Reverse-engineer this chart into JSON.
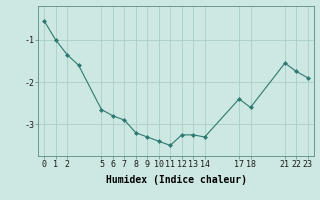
{
  "x": [
    0,
    1,
    2,
    3,
    5,
    6,
    7,
    8,
    9,
    10,
    11,
    12,
    13,
    14,
    17,
    18,
    21,
    22,
    23
  ],
  "y": [
    -0.55,
    -1.0,
    -1.35,
    -1.6,
    -2.65,
    -2.8,
    -2.9,
    -3.2,
    -3.3,
    -3.4,
    -3.5,
    -3.25,
    -3.25,
    -3.3,
    -2.4,
    -2.6,
    -1.55,
    -1.75,
    -1.9
  ],
  "line_color": "#2d7a6e",
  "marker_color": "#2d7a6e",
  "bg_color": "#cde8e2",
  "plot_bg_color": "#cde8e2",
  "grid_color": "#aacfc8",
  "xlabel": "Humidex (Indice chaleur)",
  "xlabel_fontsize": 7,
  "tick_fontsize": 6,
  "yticks": [
    -3,
    -2,
    -1
  ],
  "xlim": [
    -0.5,
    23.5
  ],
  "ylim": [
    -3.75,
    -0.2
  ],
  "xtick_labels": [
    "0",
    "1",
    "2",
    "5",
    "6",
    "7",
    "8",
    "9",
    "10",
    "11",
    "12",
    "13",
    "14",
    "17",
    "18",
    "21",
    "22",
    "23"
  ],
  "xtick_positions": [
    0,
    1,
    2,
    5,
    6,
    7,
    8,
    9,
    10,
    11,
    12,
    13,
    14,
    17,
    18,
    21,
    22,
    23
  ]
}
